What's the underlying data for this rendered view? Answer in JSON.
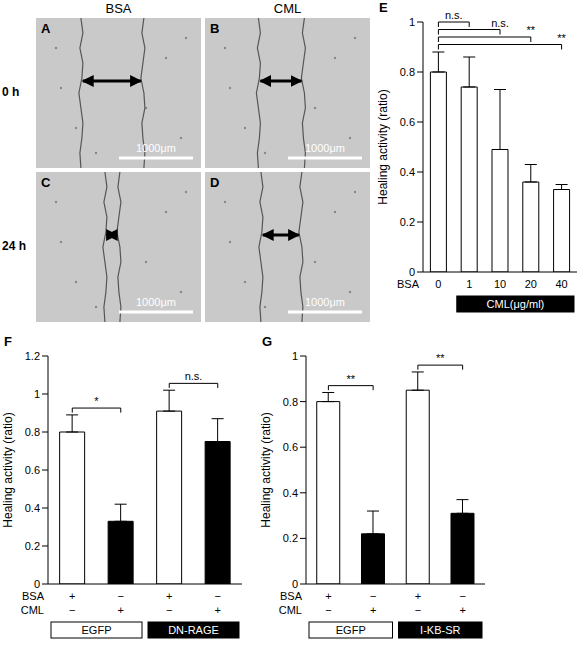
{
  "images": {
    "columns": [
      "BSA",
      "CML"
    ],
    "rows": [
      "0 h",
      "24 h"
    ],
    "panels": [
      [
        "A",
        "B"
      ],
      [
        "C",
        "D"
      ]
    ],
    "scale_bar": "1000μm"
  },
  "chart_data": [
    {
      "type": "bar",
      "panel_label": "E",
      "categories": [
        "0",
        "1",
        "10",
        "20",
        "40"
      ],
      "category_label": "BSA",
      "values": [
        0.8,
        0.74,
        0.49,
        0.36,
        0.33
      ],
      "errors": [
        0.08,
        0.12,
        0.24,
        0.07,
        0.02
      ],
      "colors": [
        "#ffffff",
        "#ffffff",
        "#ffffff",
        "#ffffff",
        "#ffffff"
      ],
      "y_label": "Healing activity (ratio)",
      "ylim": [
        0,
        1
      ],
      "yticks": [
        0,
        0.2,
        0.4,
        0.6,
        0.8,
        1
      ],
      "grid": false,
      "groups": [
        {
          "label": "CML(μg/ml)",
          "between": [
            1,
            4
          ],
          "color": "#000000"
        }
      ],
      "annotations": [
        {
          "between": [
            0,
            1
          ],
          "text": "n.s."
        },
        {
          "between": [
            0,
            2
          ],
          "text": "n.s."
        },
        {
          "between": [
            0,
            3
          ],
          "text": "**"
        },
        {
          "between": [
            0,
            4
          ],
          "text": "**"
        }
      ]
    },
    {
      "type": "bar",
      "panel_label": "F",
      "categories": [
        null,
        null,
        null,
        null
      ],
      "rows": [
        {
          "label": "BSA",
          "values": [
            "+",
            "−",
            "+",
            "−"
          ]
        },
        {
          "label": "CML",
          "values": [
            "−",
            "+",
            "−",
            "+"
          ]
        }
      ],
      "values": [
        0.8,
        0.33,
        0.91,
        0.75
      ],
      "errors": [
        0.09,
        0.09,
        0.11,
        0.12
      ],
      "colors": [
        "#ffffff",
        "#000000",
        "#ffffff",
        "#000000"
      ],
      "y_label": "Healing activity (ratio)",
      "ylim": [
        0,
        1.2
      ],
      "yticks": [
        0,
        0.2,
        0.4,
        0.6,
        0.8,
        1,
        1.2
      ],
      "grid": false,
      "groups": [
        {
          "label": "EGFP",
          "between": [
            0,
            1
          ],
          "color": "#ffffff"
        },
        {
          "label": "DN-RAGE",
          "between": [
            2,
            3
          ],
          "color": "#000000"
        }
      ],
      "annotations": [
        {
          "between": [
            0,
            1
          ],
          "text": "*"
        },
        {
          "between": [
            2,
            3
          ],
          "text": "n.s."
        }
      ]
    },
    {
      "type": "bar",
      "panel_label": "G",
      "categories": [
        null,
        null,
        null,
        null
      ],
      "rows": [
        {
          "label": "BSA",
          "values": [
            "+",
            "−",
            "+",
            "−"
          ]
        },
        {
          "label": "CML",
          "values": [
            "−",
            "+",
            "−",
            "+"
          ]
        }
      ],
      "values": [
        0.8,
        0.22,
        0.85,
        0.31
      ],
      "errors": [
        0.04,
        0.1,
        0.08,
        0.06
      ],
      "colors": [
        "#ffffff",
        "#000000",
        "#ffffff",
        "#000000"
      ],
      "y_label": "Healing activity (ratio)",
      "ylim": [
        0,
        1
      ],
      "yticks": [
        0,
        0.2,
        0.4,
        0.6,
        0.8,
        1
      ],
      "grid": false,
      "groups": [
        {
          "label": "EGFP",
          "between": [
            0,
            1
          ],
          "color": "#ffffff"
        },
        {
          "label": "I-KB-SR",
          "between": [
            2,
            3
          ],
          "color": "#000000"
        }
      ],
      "annotations": [
        {
          "between": [
            0,
            1
          ],
          "text": "**"
        },
        {
          "between": [
            2,
            3
          ],
          "text": "**"
        }
      ]
    }
  ]
}
